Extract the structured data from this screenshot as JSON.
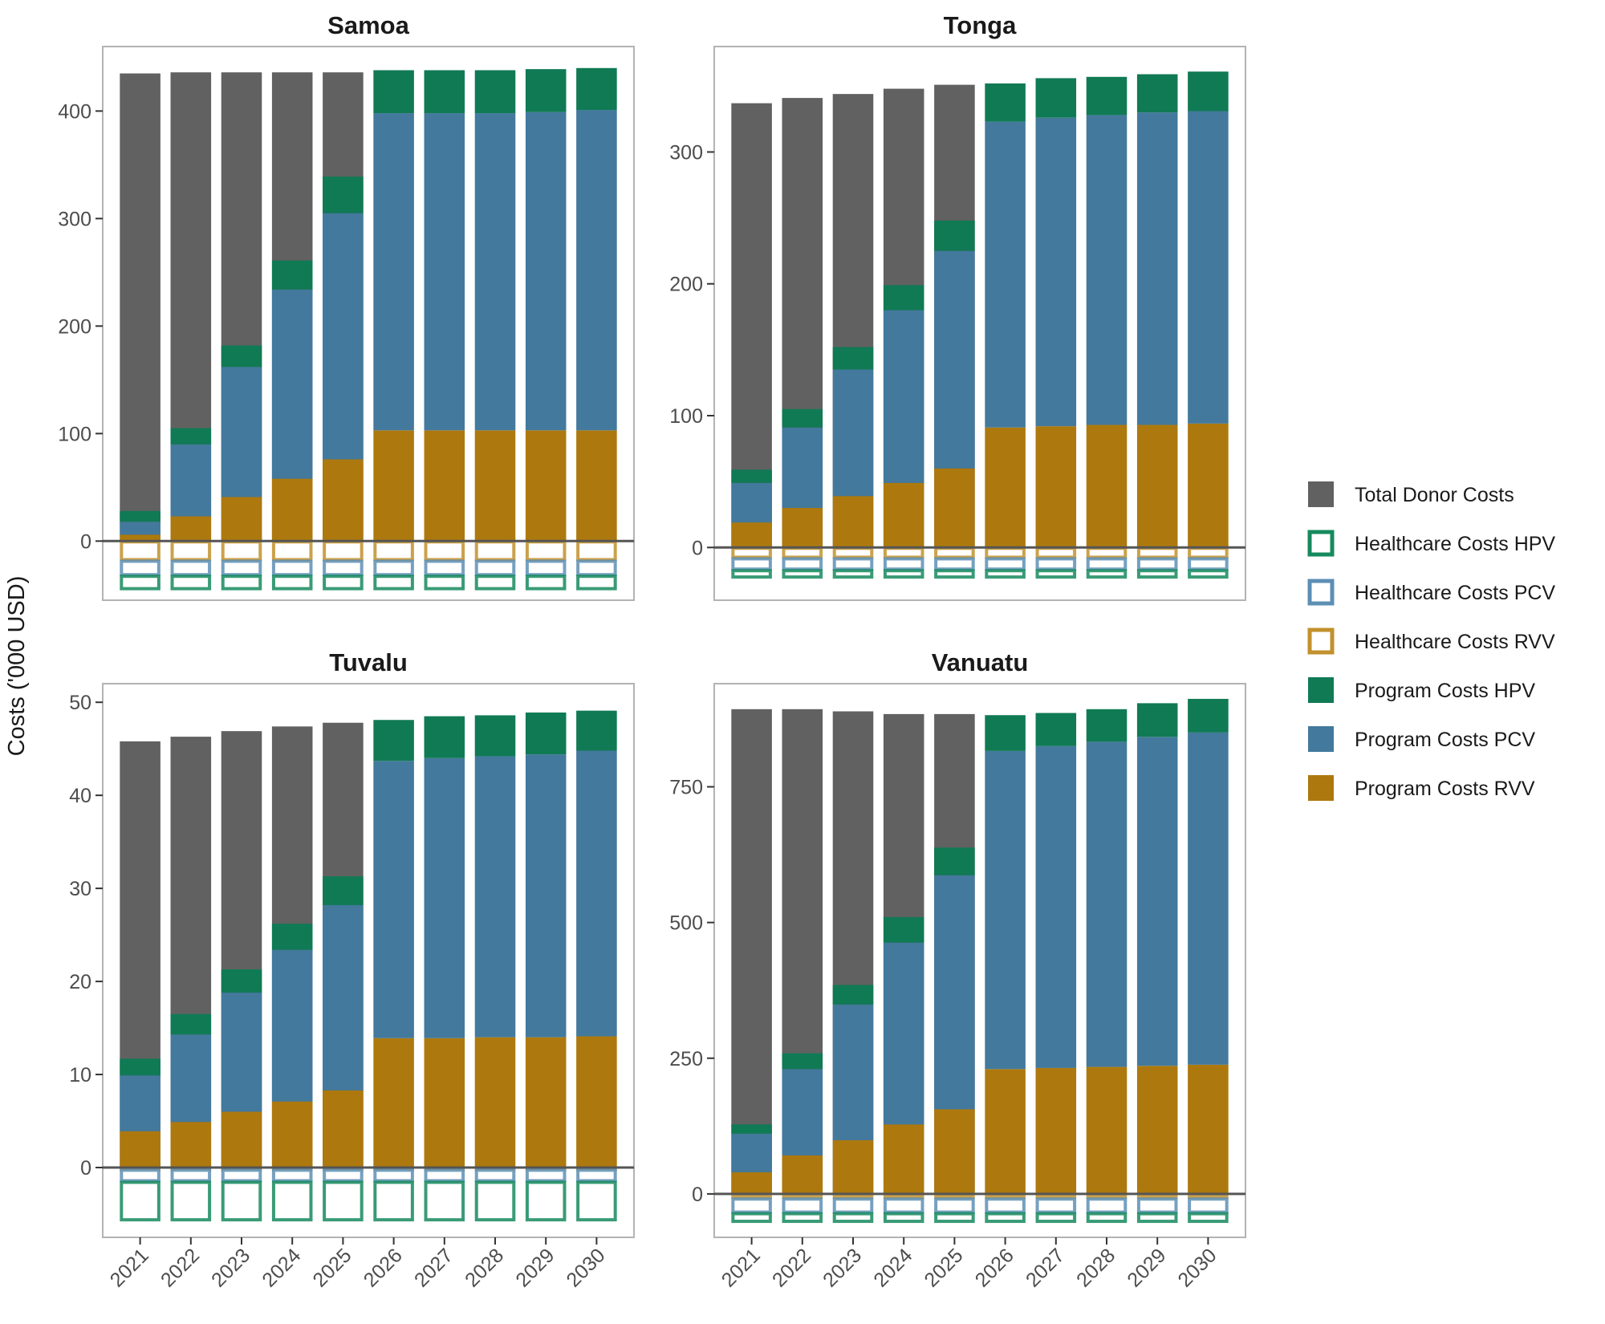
{
  "chart_data": {
    "type": "bar",
    "subtype": "stacked-faceted",
    "ylabel": "Costs ('000 USD)",
    "xlabel": "",
    "categories": [
      "2021",
      "2022",
      "2023",
      "2024",
      "2025",
      "2026",
      "2027",
      "2028",
      "2029",
      "2030"
    ],
    "legend": {
      "position": "right",
      "entries": [
        {
          "key": "total_donor",
          "label": "Total Donor Costs",
          "style": "filled",
          "color": "#616161"
        },
        {
          "key": "hc_hpv",
          "label": "Healthcare Costs HPV",
          "style": "outline",
          "color": "#168a5e"
        },
        {
          "key": "hc_pcv",
          "label": "Healthcare Costs PCV",
          "style": "outline",
          "color": "#5d8fb5"
        },
        {
          "key": "hc_rvv",
          "label": "Healthcare Costs RVV",
          "style": "outline",
          "color": "#c2912c"
        },
        {
          "key": "prog_hpv",
          "label": "Program Costs HPV",
          "style": "filled",
          "color": "#107a55"
        },
        {
          "key": "prog_pcv",
          "label": "Program Costs PCV",
          "style": "filled",
          "color": "#43799c"
        },
        {
          "key": "prog_rvv",
          "label": "Program Costs RVV",
          "style": "filled",
          "color": "#ad790e"
        }
      ]
    },
    "panels": [
      {
        "title": "Samoa",
        "ylim": [
          -55,
          460
        ],
        "yticks": [
          0,
          100,
          200,
          300,
          400
        ],
        "series": {
          "total_donor": [
            435,
            436,
            436,
            436,
            436,
            0,
            0,
            0,
            0,
            0
          ],
          "prog_rvv": [
            6,
            23,
            41,
            58,
            76,
            103,
            103,
            103,
            103,
            103
          ],
          "prog_pcv": [
            12,
            67,
            121,
            176,
            229,
            295,
            295,
            295,
            296,
            298
          ],
          "prog_hpv": [
            10,
            15,
            20,
            27,
            34,
            40,
            40,
            40,
            40,
            39
          ],
          "hc_rvv": [
            -18,
            -18,
            -18,
            -18,
            -18,
            -18,
            -18,
            -18,
            -18,
            -18
          ],
          "hc_pcv": [
            -14,
            -14,
            -14,
            -14,
            -14,
            -14,
            -14,
            -14,
            -14,
            -14
          ],
          "hc_hpv": [
            -13,
            -13,
            -13,
            -13,
            -13,
            -13,
            -13,
            -13,
            -13,
            -13
          ]
        }
      },
      {
        "title": "Tonga",
        "ylim": [
          -40,
          380
        ],
        "yticks": [
          0,
          100,
          200,
          300
        ],
        "series": {
          "total_donor": [
            337,
            341,
            344,
            348,
            351,
            0,
            0,
            0,
            0,
            0
          ],
          "prog_rvv": [
            19,
            30,
            39,
            49,
            60,
            91,
            92,
            93,
            93,
            94
          ],
          "prog_pcv": [
            30,
            61,
            96,
            131,
            165,
            232,
            234,
            235,
            237,
            237
          ],
          "prog_hpv": [
            10,
            14,
            17,
            19,
            23,
            29,
            30,
            29,
            29,
            30
          ],
          "hc_rvv": [
            -8,
            -8,
            -8,
            -8,
            -8,
            -8,
            -8,
            -8,
            -8,
            -8
          ],
          "hc_pcv": [
            -9,
            -9,
            -9,
            -9,
            -9,
            -9,
            -9,
            -9,
            -9,
            -9
          ],
          "hc_hpv": [
            -6,
            -6,
            -6,
            -6,
            -6,
            -6,
            -6,
            -6,
            -6,
            -6
          ]
        }
      },
      {
        "title": "Tuvalu",
        "ylim": [
          -7.5,
          52
        ],
        "yticks": [
          0,
          10,
          20,
          30,
          40,
          50
        ],
        "series": {
          "total_donor": [
            45.8,
            46.3,
            46.9,
            47.4,
            47.8,
            0,
            0,
            0,
            0,
            0
          ],
          "prog_rvv": [
            3.9,
            4.9,
            6.0,
            7.1,
            8.3,
            13.9,
            13.9,
            14.0,
            14.0,
            14.1
          ],
          "prog_pcv": [
            6.0,
            9.4,
            12.8,
            16.3,
            19.9,
            29.8,
            30.1,
            30.2,
            30.4,
            30.7
          ],
          "prog_hpv": [
            1.8,
            2.2,
            2.5,
            2.8,
            3.1,
            4.4,
            4.5,
            4.4,
            4.5,
            4.3
          ],
          "hc_rvv": [
            -0.2,
            -0.2,
            -0.2,
            -0.2,
            -0.2,
            -0.2,
            -0.2,
            -0.2,
            -0.2,
            -0.2
          ],
          "hc_pcv": [
            -1.3,
            -1.3,
            -1.3,
            -1.3,
            -1.3,
            -1.3,
            -1.3,
            -1.3,
            -1.3,
            -1.3
          ],
          "hc_hpv": [
            -4.2,
            -4.2,
            -4.2,
            -4.2,
            -4.2,
            -4.2,
            -4.2,
            -4.2,
            -4.2,
            -4.2
          ]
        }
      },
      {
        "title": "Vanuatu",
        "ylim": [
          -80,
          940
        ],
        "yticks": [
          0,
          250,
          500,
          750
        ],
        "series": {
          "total_donor": [
            893,
            893,
            889,
            884,
            884,
            0,
            0,
            0,
            0,
            0
          ],
          "prog_rvv": [
            40,
            71,
            99,
            128,
            156,
            230,
            232,
            234,
            236,
            238
          ],
          "prog_pcv": [
            71,
            159,
            250,
            335,
            431,
            586,
            593,
            599,
            606,
            612
          ],
          "prog_hpv": [
            17,
            29,
            36,
            47,
            51,
            66,
            61,
            60,
            62,
            62
          ],
          "hc_rvv": [
            -8,
            -8,
            -8,
            -8,
            -8,
            -8,
            -8,
            -8,
            -8,
            -8
          ],
          "hc_pcv": [
            -27,
            -27,
            -27,
            -27,
            -27,
            -27,
            -27,
            -27,
            -27,
            -27
          ],
          "hc_hpv": [
            -17,
            -17,
            -17,
            -17,
            -17,
            -17,
            -17,
            -17,
            -17,
            -17
          ]
        }
      }
    ]
  }
}
